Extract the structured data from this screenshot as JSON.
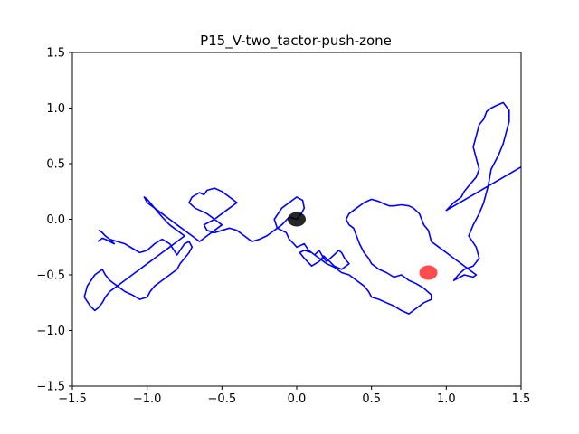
{
  "chart_data": {
    "type": "line",
    "title": "P15_V-two_tactor-push-zone",
    "xlabel": "",
    "ylabel": "",
    "xlim": [
      -1.5,
      1.5
    ],
    "ylim": [
      -1.5,
      1.5
    ],
    "x_ticks": [
      -1.5,
      -1.0,
      -0.5,
      0.0,
      0.5,
      1.0,
      1.5
    ],
    "x_tick_labels": [
      "−1.5",
      "−1.0",
      "−0.5",
      "0.0",
      "0.5",
      "1.0",
      "1.5"
    ],
    "y_ticks": [
      -1.5,
      -1.0,
      -0.5,
      0.0,
      0.5,
      1.0,
      1.5
    ],
    "y_tick_labels": [
      "−1.5",
      "−1.0",
      "−0.5",
      "0.0",
      "0.5",
      "1.0",
      "1.5"
    ],
    "grid": false,
    "legend": "none",
    "series": [
      {
        "color": "#0000ff",
        "x": [
          0.0,
          0.03,
          0.05,
          0.04,
          0.0,
          -0.03,
          -0.1,
          -0.15,
          -0.13,
          -0.07,
          -0.05,
          -0.02,
          0.0,
          0.05,
          0.08,
          0.12,
          0.15,
          0.18,
          0.2,
          0.25,
          0.28,
          0.3,
          0.32,
          0.35,
          0.3,
          0.25,
          0.22,
          0.18,
          0.15,
          0.1,
          0.05,
          0.02,
          0.05,
          0.1,
          0.15,
          0.2,
          0.25,
          0.3,
          0.35,
          0.4,
          0.45,
          0.48,
          0.5,
          0.55,
          0.6,
          0.65,
          0.7,
          0.75,
          0.8,
          0.85,
          0.9,
          0.9,
          0.85,
          0.8,
          0.75,
          0.7,
          0.65,
          0.6,
          0.55,
          0.5,
          0.48,
          0.45,
          0.42,
          0.4,
          0.38,
          0.35,
          0.33,
          0.35,
          0.4,
          0.45,
          0.5,
          0.55,
          0.58,
          0.6,
          0.62,
          0.65,
          0.7,
          0.75,
          0.78,
          0.82,
          0.85,
          0.88,
          0.9,
          0.95,
          1.0,
          1.05,
          1.1,
          1.15,
          1.2,
          1.18,
          1.12,
          1.08,
          1.05,
          1.08,
          1.12,
          1.18,
          1.22,
          1.2,
          1.15,
          1.18,
          1.22,
          1.25,
          1.28,
          1.3,
          1.35,
          1.38,
          1.4,
          1.42,
          1.42,
          1.38,
          1.33,
          1.3,
          1.27,
          1.25,
          1.22,
          1.2,
          1.18,
          1.2,
          1.22,
          1.2,
          1.15,
          1.12,
          1.1,
          1.05,
          1.0,
          1.5
        ],
        "y": [
          0.0,
          0.05,
          0.1,
          0.17,
          0.2,
          0.17,
          0.1,
          0.0,
          -0.08,
          -0.12,
          -0.18,
          -0.22,
          -0.25,
          -0.22,
          -0.28,
          -0.32,
          -0.28,
          -0.35,
          -0.38,
          -0.32,
          -0.28,
          -0.3,
          -0.35,
          -0.4,
          -0.45,
          -0.42,
          -0.38,
          -0.33,
          -0.38,
          -0.42,
          -0.35,
          -0.3,
          -0.28,
          -0.3,
          -0.35,
          -0.4,
          -0.43,
          -0.48,
          -0.5,
          -0.55,
          -0.6,
          -0.65,
          -0.7,
          -0.72,
          -0.75,
          -0.78,
          -0.82,
          -0.85,
          -0.8,
          -0.75,
          -0.72,
          -0.68,
          -0.62,
          -0.58,
          -0.55,
          -0.5,
          -0.52,
          -0.48,
          -0.45,
          -0.4,
          -0.35,
          -0.3,
          -0.22,
          -0.15,
          -0.08,
          -0.05,
          0.0,
          0.05,
          0.1,
          0.15,
          0.18,
          0.16,
          0.14,
          0.13,
          0.12,
          0.12,
          0.13,
          0.12,
          0.1,
          0.05,
          -0.05,
          -0.1,
          -0.2,
          -0.25,
          -0.3,
          -0.35,
          -0.4,
          -0.45,
          -0.5,
          -0.52,
          -0.5,
          -0.53,
          -0.55,
          -0.5,
          -0.45,
          -0.42,
          -0.35,
          -0.25,
          -0.15,
          -0.05,
          0.05,
          0.15,
          0.3,
          0.45,
          0.58,
          0.68,
          0.78,
          0.88,
          0.98,
          1.05,
          1.02,
          1.0,
          0.97,
          0.9,
          0.85,
          0.75,
          0.65,
          0.55,
          0.45,
          0.38,
          0.3,
          0.25,
          0.2,
          0.15,
          0.08,
          0.47
        ]
      },
      {
        "color": "#0000ff",
        "x": [
          0.0,
          -0.05,
          -0.1,
          -0.15,
          -0.2,
          -0.25,
          -0.3,
          -0.35,
          -0.4,
          -0.45,
          -0.5,
          -0.55,
          -0.6,
          -0.62,
          -0.55,
          -0.5,
          -0.45,
          -0.4,
          -0.45,
          -0.5,
          -0.55,
          -0.6,
          -0.62,
          -0.65,
          -0.7,
          -0.72,
          -0.68,
          -0.6,
          -0.55,
          -0.5,
          -0.55,
          -0.6,
          -0.65,
          -0.7,
          -0.75,
          -0.8,
          -0.85,
          -0.9,
          -0.95,
          -1.0,
          -1.02,
          -1.0,
          -0.95,
          -0.9,
          -0.85,
          -0.8,
          -0.75,
          -0.8,
          -0.85,
          -0.9,
          -0.95,
          -1.0,
          -1.05,
          -1.1,
          -1.15,
          -1.2,
          -1.25,
          -1.28,
          -1.3,
          -1.33,
          -1.35,
          -1.38,
          -1.42,
          -1.4,
          -1.35,
          -1.3,
          -1.28,
          -1.25,
          -1.2,
          -1.15,
          -1.1,
          -1.05,
          -1.0,
          -0.98,
          -0.95,
          -0.9,
          -0.85,
          -0.8,
          -0.78,
          -0.75,
          -0.72,
          -0.7,
          -0.72,
          -0.75,
          -0.78,
          -0.8,
          -0.82,
          -0.85,
          -0.9,
          -0.95,
          -1.0,
          -1.05,
          -1.1,
          -1.15,
          -1.2,
          -1.25,
          -1.28,
          -1.3,
          -1.32,
          -1.3,
          -1.28,
          -1.25,
          -1.22,
          -1.25,
          -1.28,
          -1.3,
          -1.33
        ],
        "y": [
          0.0,
          0.02,
          -0.05,
          -0.1,
          -0.15,
          -0.18,
          -0.2,
          -0.15,
          -0.1,
          -0.08,
          -0.1,
          -0.12,
          -0.1,
          -0.05,
          0.0,
          0.05,
          0.1,
          0.15,
          0.2,
          0.25,
          0.28,
          0.26,
          0.22,
          0.24,
          0.2,
          0.15,
          0.1,
          0.05,
          0.0,
          -0.05,
          -0.1,
          -0.15,
          -0.2,
          -0.15,
          -0.1,
          -0.05,
          0.0,
          0.05,
          0.1,
          0.15,
          0.2,
          0.18,
          0.1,
          0.02,
          -0.05,
          -0.1,
          -0.15,
          -0.2,
          -0.25,
          -0.3,
          -0.35,
          -0.4,
          -0.45,
          -0.5,
          -0.55,
          -0.6,
          -0.65,
          -0.7,
          -0.75,
          -0.8,
          -0.82,
          -0.78,
          -0.7,
          -0.6,
          -0.5,
          -0.45,
          -0.5,
          -0.55,
          -0.6,
          -0.65,
          -0.68,
          -0.72,
          -0.7,
          -0.65,
          -0.6,
          -0.55,
          -0.5,
          -0.45,
          -0.4,
          -0.35,
          -0.3,
          -0.25,
          -0.2,
          -0.22,
          -0.28,
          -0.32,
          -0.28,
          -0.22,
          -0.18,
          -0.22,
          -0.28,
          -0.3,
          -0.26,
          -0.22,
          -0.2,
          -0.18,
          -0.15,
          -0.12,
          -0.1,
          -0.12,
          -0.15,
          -0.18,
          -0.22,
          -0.2,
          -0.18,
          -0.17,
          -0.2
        ]
      }
    ],
    "markers": [
      {
        "x": 0.0,
        "y": 0.0,
        "color": "#000000",
        "alpha": 0.85
      },
      {
        "x": 0.88,
        "y": -0.48,
        "color": "#ff0000",
        "alpha": 0.7
      }
    ]
  }
}
